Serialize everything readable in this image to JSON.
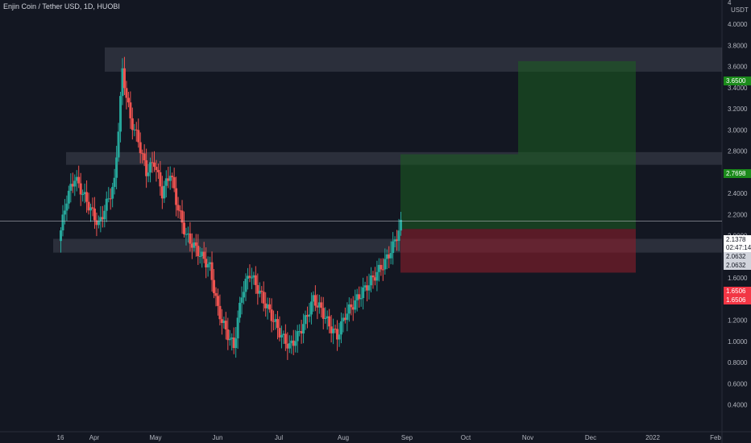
{
  "header": {
    "symbol_title": "Enjin Coin / Tether USD, 1D, HUOBI"
  },
  "price_scale": {
    "unit": "USDT",
    "ticks": [
      "4.0000",
      "3.8000",
      "3.6000",
      "3.4000",
      "3.2000",
      "3.0000",
      "2.8000",
      "2.6000",
      "2.4000",
      "2.2000",
      "2.0000",
      "1.8000",
      "1.6000",
      "1.4000",
      "1.2000",
      "1.0000",
      "0.8000",
      "0.6000",
      "0.4000"
    ],
    "top_partial": "4",
    "badges": [
      {
        "text": "3.6500",
        "bg": "#1b8a1b",
        "fg": "#ffffff"
      },
      {
        "text": "2.7698",
        "bg": "#1b8a1b",
        "fg": "#ffffff"
      },
      {
        "text": "2.1378",
        "bg": "#ffffff",
        "fg": "#131722"
      },
      {
        "text": "02:47:14",
        "bg": "#ffffff",
        "fg": "#131722"
      },
      {
        "text": "2.0632",
        "bg": "#d1d4dc",
        "fg": "#131722"
      },
      {
        "text": "2.0632",
        "bg": "#d1d4dc",
        "fg": "#131722"
      },
      {
        "text": "1.6506",
        "bg": "#f23645",
        "fg": "#ffffff"
      },
      {
        "text": "1.6506",
        "bg": "#f23645",
        "fg": "#ffffff"
      }
    ]
  },
  "time_scale": {
    "labels": [
      "16",
      "Apr",
      "May",
      "Jun",
      "Jul",
      "Aug",
      "Sep",
      "Oct",
      "Nov",
      "Dec",
      "2022",
      "Feb"
    ]
  },
  "chart_data": {
    "type": "candlestick",
    "instrument": "Enjin Coin / Tether USD",
    "interval": "1D",
    "exchange": "HUOBI",
    "ylim": [
      0.4,
      4.2
    ],
    "x_categories": [
      "16",
      "Apr",
      "May",
      "Jun",
      "Jul",
      "Aug",
      "Sep",
      "Oct",
      "Nov",
      "Dec",
      "2022",
      "Feb"
    ],
    "last_price": 2.1378,
    "countdown": "02:47:14",
    "zones": [
      {
        "low": 3.55,
        "high": 3.78
      },
      {
        "low": 2.67,
        "high": 2.79
      },
      {
        "low": 1.84,
        "high": 1.97
      }
    ],
    "position": {
      "entry": 2.0632,
      "target": 3.65,
      "target_1": 2.7698,
      "stop": 1.6506
    },
    "colors": {
      "up": "#26a69a",
      "down": "#ef5350",
      "background": "#131722"
    },
    "approx_closes": [
      1.95,
      2.35,
      2.55,
      2.4,
      2.25,
      2.1,
      2.3,
      2.5,
      3.55,
      3.1,
      2.9,
      2.6,
      2.7,
      2.4,
      2.6,
      2.25,
      2.0,
      1.9,
      1.8,
      1.7,
      1.3,
      1.1,
      0.95,
      1.45,
      1.65,
      1.5,
      1.35,
      1.2,
      1.05,
      0.95,
      1.05,
      1.2,
      1.4,
      1.3,
      1.15,
      1.05,
      1.25,
      1.35,
      1.45,
      1.55,
      1.65,
      1.75,
      1.9,
      2.1
    ]
  }
}
